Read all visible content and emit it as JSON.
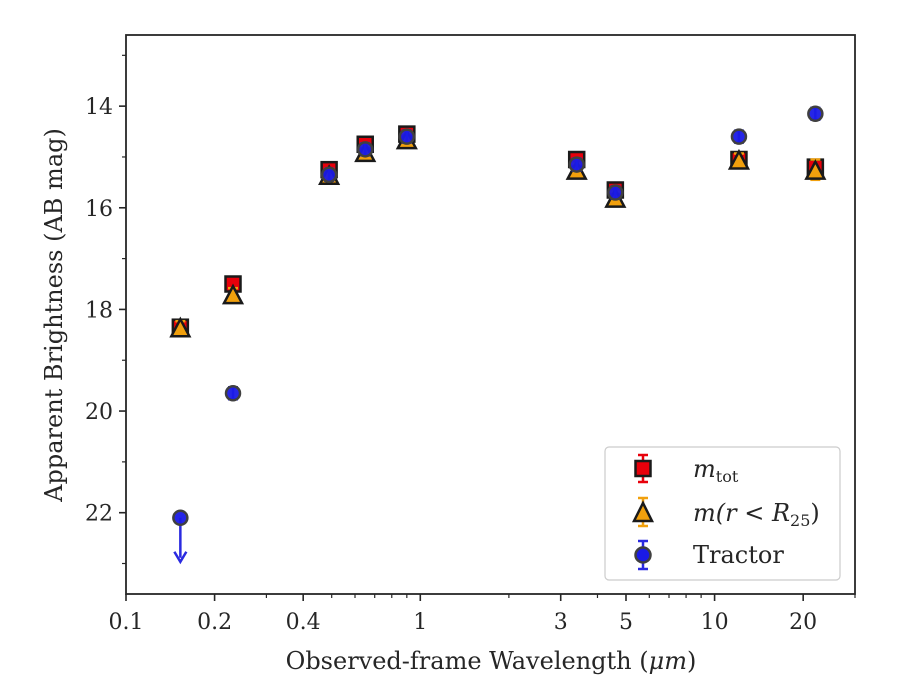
{
  "chart_data": {
    "type": "scatter",
    "xlabel_prefix": "Observed-frame Wavelength (",
    "xlabel_unit": "μm",
    "xlabel_suffix": ")",
    "ylabel": "Apparent Brightness (AB mag)",
    "xscale": "log",
    "xlim": [
      0.1,
      30
    ],
    "ylim": [
      23.6,
      12.6
    ],
    "y_inverted": true,
    "grid": false,
    "legend_position": "lower-right",
    "x_tick_labels": [
      "0.1",
      "0.2",
      "0.4",
      "1",
      "3",
      "5",
      "10",
      "20"
    ],
    "x_tick_values": [
      0.1,
      0.2,
      0.4,
      1,
      3,
      5,
      10,
      20
    ],
    "y_tick_labels": [
      "14",
      "16",
      "18",
      "20",
      "22"
    ],
    "y_tick_values": [
      14,
      16,
      18,
      20,
      22
    ],
    "series": [
      {
        "name": "m_tot",
        "legend_main": "m",
        "legend_sub": "tot",
        "marker": "square",
        "color": "#e8000b",
        "edge": "#1a1a1a",
        "errcolor": "#e8000b",
        "points": [
          {
            "x": 0.153,
            "y": 18.35,
            "err": 0.05
          },
          {
            "x": 0.231,
            "y": 17.5,
            "err": 0.05
          },
          {
            "x": 0.49,
            "y": 15.25,
            "err": 0.05
          },
          {
            "x": 0.65,
            "y": 14.75,
            "err": 0.05
          },
          {
            "x": 0.9,
            "y": 14.55,
            "err": 0.05
          },
          {
            "x": 3.4,
            "y": 15.05,
            "err": 0.05
          },
          {
            "x": 4.6,
            "y": 15.65,
            "err": 0.05
          },
          {
            "x": 12.1,
            "y": 15.05,
            "err": 0.05
          },
          {
            "x": 22.0,
            "y": 15.2,
            "err": 0.1
          }
        ]
      },
      {
        "name": "m(r<R_25)",
        "legend_main": "m(r < R",
        "legend_sub": "25",
        "legend_tail": ")",
        "marker": "triangle",
        "color": "#f1a00d",
        "edge": "#1a1a1a",
        "errcolor": "#f1a00d",
        "points": [
          {
            "x": 0.153,
            "y": 18.35,
            "err": 0.05
          },
          {
            "x": 0.231,
            "y": 17.7,
            "err": 0.05
          },
          {
            "x": 0.49,
            "y": 15.35,
            "err": 0.05
          },
          {
            "x": 0.65,
            "y": 14.9,
            "err": 0.05
          },
          {
            "x": 0.9,
            "y": 14.65,
            "err": 0.05
          },
          {
            "x": 3.4,
            "y": 15.25,
            "err": 0.05
          },
          {
            "x": 4.6,
            "y": 15.8,
            "err": 0.05
          },
          {
            "x": 12.1,
            "y": 15.05,
            "err": 0.05
          },
          {
            "x": 22.0,
            "y": 15.25,
            "err": 0.2
          }
        ]
      },
      {
        "name": "Tractor",
        "legend_main": "Tractor",
        "marker": "circle",
        "color": "#1a1ae6",
        "edge": "#404040",
        "errcolor": "#2a2ae0",
        "points": [
          {
            "x": 0.153,
            "y": 22.1,
            "err": 0.0,
            "upper_limit": true
          },
          {
            "x": 0.231,
            "y": 19.65,
            "err": 0.05
          },
          {
            "x": 0.49,
            "y": 15.35,
            "err": 0.05
          },
          {
            "x": 0.65,
            "y": 14.85,
            "err": 0.05
          },
          {
            "x": 0.9,
            "y": 14.6,
            "err": 0.05
          },
          {
            "x": 3.4,
            "y": 15.15,
            "err": 0.05
          },
          {
            "x": 4.6,
            "y": 15.7,
            "err": 0.05
          },
          {
            "x": 12.1,
            "y": 14.6,
            "err": 0.05
          },
          {
            "x": 22.0,
            "y": 14.15,
            "err": 0.05
          }
        ]
      }
    ]
  }
}
